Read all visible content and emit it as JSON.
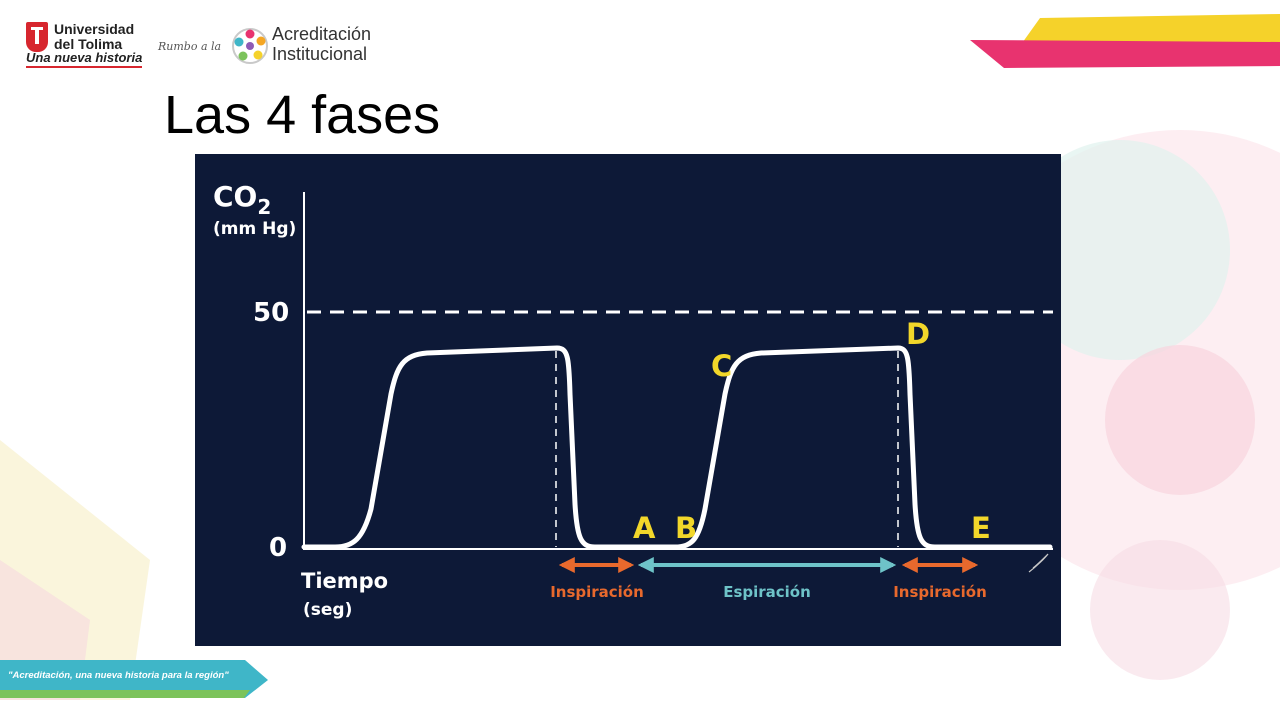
{
  "header": {
    "university": {
      "line1": "Universidad",
      "line2": "del Tolima",
      "tagline": "Una nueva historia"
    },
    "rumbo": "Rumbo a la",
    "accreditation": {
      "line1": "Acreditación",
      "line2": "Institucional"
    }
  },
  "slide": {
    "title": "Las 4 fases"
  },
  "diagram": {
    "y_axis": {
      "label_main": "CO",
      "label_sub": "2",
      "unit": "(mm Hg)",
      "tick_top": "50",
      "tick_zero": "0"
    },
    "x_axis": {
      "label": "Tiempo",
      "unit": "(seg)"
    },
    "points": {
      "A": "A",
      "B": "B",
      "C": "C",
      "D": "D",
      "E": "E"
    },
    "phases": {
      "inspiration_1": "Inspiración",
      "expiration": "Espiración",
      "inspiration_2": "Inspiración"
    },
    "colors": {
      "background": "#0d1937",
      "curve": "#ffffff",
      "point_labels": "#f2d72a",
      "inspiration": "#e8692d",
      "expiration": "#6ec3c8"
    }
  },
  "footer": {
    "slogan": "\"Acreditación, una nueva historia para la región\""
  }
}
